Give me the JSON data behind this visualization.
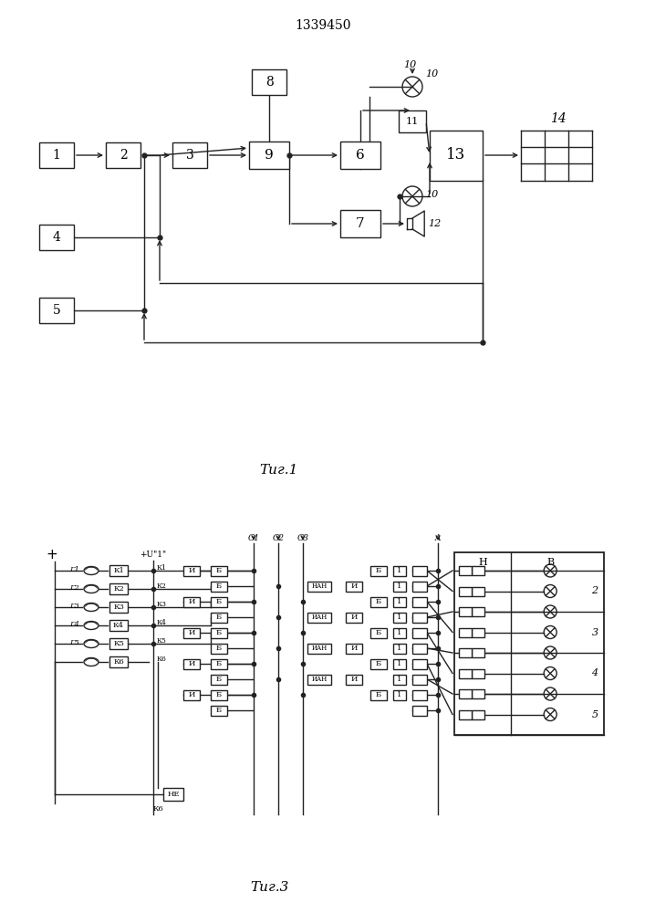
{
  "title": "1339450",
  "fig1_label": "Τиг.1",
  "fig3_label": "Τиг.3",
  "bg_color": "#ffffff",
  "line_color": "#222222"
}
